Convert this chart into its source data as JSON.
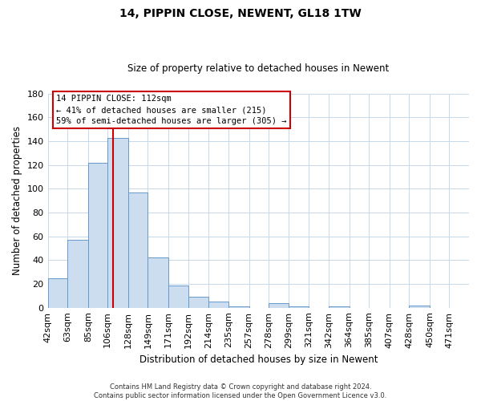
{
  "title": "14, PIPPIN CLOSE, NEWENT, GL18 1TW",
  "subtitle": "Size of property relative to detached houses in Newent",
  "xlabel": "Distribution of detached houses by size in Newent",
  "ylabel": "Number of detached properties",
  "bar_labels": [
    "42sqm",
    "63sqm",
    "85sqm",
    "106sqm",
    "128sqm",
    "149sqm",
    "171sqm",
    "192sqm",
    "214sqm",
    "235sqm",
    "257sqm",
    "278sqm",
    "299sqm",
    "321sqm",
    "342sqm",
    "364sqm",
    "385sqm",
    "407sqm",
    "428sqm",
    "450sqm",
    "471sqm"
  ],
  "bar_values": [
    25,
    57,
    122,
    143,
    97,
    42,
    19,
    9,
    5,
    1,
    0,
    4,
    1,
    0,
    1,
    0,
    0,
    0,
    2,
    0,
    0
  ],
  "bar_edges": [
    42,
    63,
    85,
    106,
    128,
    149,
    171,
    192,
    214,
    235,
    257,
    278,
    299,
    321,
    342,
    364,
    385,
    407,
    428,
    450,
    471,
    492
  ],
  "bar_color": "#ccddf0",
  "bar_edge_color": "#6699cc",
  "vline_x": 112,
  "vline_color": "#cc0000",
  "ylim": [
    0,
    180
  ],
  "yticks": [
    0,
    20,
    40,
    60,
    80,
    100,
    120,
    140,
    160,
    180
  ],
  "annotation_title": "14 PIPPIN CLOSE: 112sqm",
  "annotation_line1": "← 41% of detached houses are smaller (215)",
  "annotation_line2": "59% of semi-detached houses are larger (305) →",
  "annotation_box_color": "#ffffff",
  "annotation_box_edge": "#cc0000",
  "footer_line1": "Contains HM Land Registry data © Crown copyright and database right 2024.",
  "footer_line2": "Contains public sector information licensed under the Open Government Licence v3.0.",
  "background_color": "#ffffff",
  "grid_color": "#c8d8ec"
}
